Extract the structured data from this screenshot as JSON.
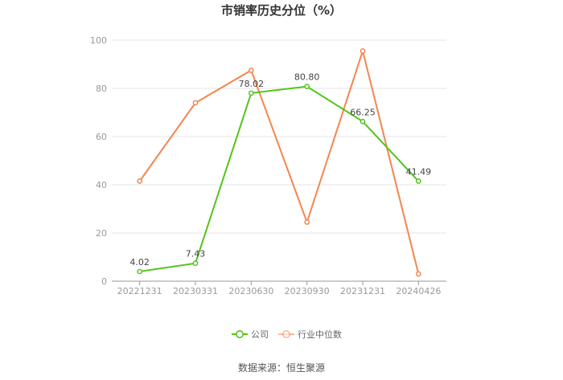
{
  "chart_data": {
    "type": "line",
    "title": "市销率历史分位（%）",
    "categories": [
      "20221231",
      "20230331",
      "20230630",
      "20230930",
      "20231231",
      "20240426"
    ],
    "ylim": [
      0,
      100
    ],
    "yticks": [
      0,
      20,
      40,
      60,
      80,
      100
    ],
    "grid": true,
    "legend_position": "bottom",
    "series": [
      {
        "name": "公司",
        "color": "#52c41a",
        "values": [
          4.02,
          7.43,
          78.02,
          80.8,
          66.25,
          41.49
        ],
        "labels": [
          "4.02",
          "7.43",
          "78.02",
          "80.80",
          "66.25",
          "41.49"
        ]
      },
      {
        "name": "行业中位数",
        "color": "#f5854f",
        "values": [
          41.5,
          74.0,
          87.5,
          24.5,
          95.5,
          3.0
        ]
      }
    ]
  },
  "footer": {
    "source": "数据来源：恒生聚源"
  }
}
